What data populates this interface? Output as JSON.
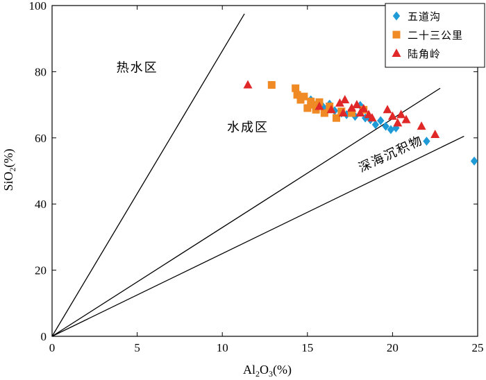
{
  "chart_data": {
    "type": "scatter",
    "title": "",
    "xlabel": "Al2O3(%)",
    "ylabel": "SiO2(%)",
    "xlim": [
      0,
      25
    ],
    "ylim": [
      0,
      100
    ],
    "xticks": [
      0,
      5,
      10,
      15,
      20,
      25
    ],
    "yticks": [
      0,
      20,
      40,
      60,
      80,
      100
    ],
    "grid": false,
    "legend_position": "top-right",
    "reference_lines": [
      {
        "name": "upper boundary",
        "from": [
          0,
          0
        ],
        "to": [
          11.3,
          97.5
        ]
      },
      {
        "name": "middle boundary",
        "from": [
          0,
          0
        ],
        "to": [
          22.8,
          75
        ]
      },
      {
        "name": "lower boundary",
        "from": [
          0,
          0
        ],
        "to": [
          24.2,
          60.5
        ]
      }
    ],
    "regions": [
      {
        "label": "热水区",
        "x": 5,
        "y": 80
      },
      {
        "label": "水成区",
        "x": 11.5,
        "y": 62
      },
      {
        "label": "深海沉积物",
        "x": 20,
        "y": 54
      }
    ],
    "series": [
      {
        "name": "五道沟",
        "marker": "diamond",
        "color": "#1e9bd7",
        "points": [
          [
            15.2,
            71.5
          ],
          [
            15.6,
            70.5
          ],
          [
            15.9,
            69.5
          ],
          [
            16.1,
            68.5
          ],
          [
            16.3,
            70.2
          ],
          [
            16.6,
            68.2
          ],
          [
            17.0,
            67.5
          ],
          [
            17.3,
            67.0
          ],
          [
            17.8,
            66.5
          ],
          [
            18.1,
            69.8
          ],
          [
            18.4,
            66.0
          ],
          [
            18.7,
            65.5
          ],
          [
            19.0,
            64.0
          ],
          [
            19.3,
            65.2
          ],
          [
            19.6,
            63.5
          ],
          [
            19.9,
            62.5
          ],
          [
            20.2,
            63.0
          ],
          [
            22.0,
            59.0
          ],
          [
            24.8,
            53.0
          ]
        ]
      },
      {
        "name": "二十三公里",
        "marker": "square",
        "color": "#f08a24",
        "points": [
          [
            12.9,
            76.0
          ],
          [
            14.3,
            75.0
          ],
          [
            14.4,
            73.0
          ],
          [
            14.6,
            71.5
          ],
          [
            14.8,
            72.5
          ],
          [
            15.0,
            69.0
          ],
          [
            15.2,
            71.0
          ],
          [
            15.3,
            70.0
          ],
          [
            15.5,
            68.5
          ],
          [
            15.7,
            70.8
          ],
          [
            16.0,
            67.5
          ],
          [
            16.3,
            69.5
          ],
          [
            16.7,
            66.0
          ],
          [
            17.0,
            68.0
          ],
          [
            17.6,
            67.5
          ],
          [
            18.3,
            68.5
          ]
        ]
      },
      {
        "name": "陆角岭",
        "marker": "triangle",
        "color": "#e02828",
        "points": [
          [
            11.5,
            76.0
          ],
          [
            15.7,
            69.5
          ],
          [
            16.4,
            68.5
          ],
          [
            16.9,
            70.5
          ],
          [
            17.1,
            67.5
          ],
          [
            17.2,
            71.5
          ],
          [
            17.6,
            69.0
          ],
          [
            17.9,
            70.0
          ],
          [
            18.1,
            67.5
          ],
          [
            18.3,
            68.8
          ],
          [
            18.6,
            67.0
          ],
          [
            18.8,
            66.0
          ],
          [
            19.7,
            68.5
          ],
          [
            20.0,
            66.5
          ],
          [
            20.3,
            64.5
          ],
          [
            20.5,
            67.0
          ],
          [
            20.8,
            65.5
          ],
          [
            21.7,
            63.5
          ],
          [
            22.5,
            61.0
          ]
        ]
      }
    ]
  }
}
